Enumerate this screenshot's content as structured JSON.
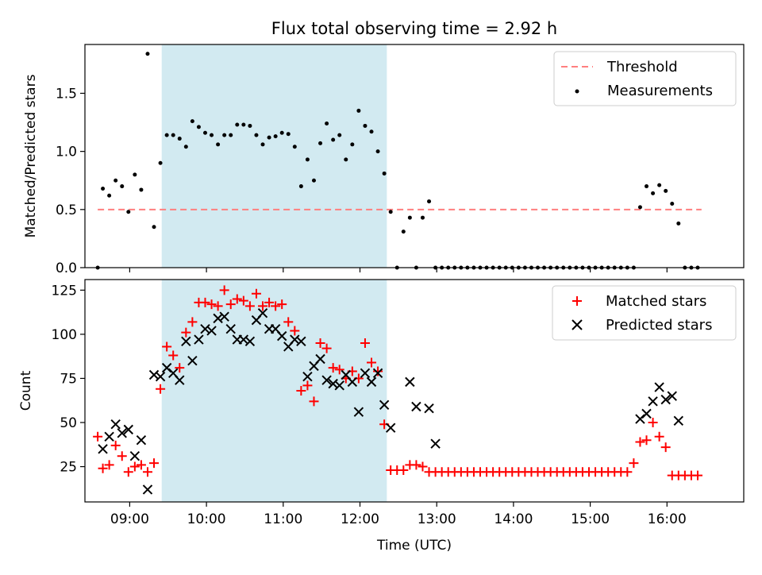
{
  "chart_data": [
    {
      "type": "scatter",
      "title": "Flux total observing time = 2.92 h",
      "ylabel": "Matched/Predicted stars",
      "xlabel": "",
      "xlim": [
        "08:25",
        "17:00"
      ],
      "ylim": [
        0,
        1.92
      ],
      "yticks": [
        0.0,
        0.5,
        1.0,
        1.5
      ],
      "ytick_labels": [
        "0.0",
        "0.5",
        "1.0",
        "1.5"
      ],
      "shaded_span": {
        "start": "09:25",
        "end": "12:21",
        "color": "#add8e6"
      },
      "legend": {
        "position": "top-right",
        "entries": [
          "Threshold",
          "Measurements"
        ]
      },
      "threshold": {
        "name": "Threshold",
        "value": 0.5,
        "x_start": "08:35",
        "x_end": "16:27",
        "color": "#ff7f7f",
        "style": "dashed"
      },
      "series": [
        {
          "name": "Measurements",
          "color": "#000000",
          "marker": "dot",
          "x": [
            "08:35",
            "08:39",
            "08:44",
            "08:49",
            "08:54",
            "08:59",
            "09:04",
            "09:09",
            "09:14",
            "09:19",
            "09:24",
            "09:29",
            "09:34",
            "09:39",
            "09:44",
            "09:49",
            "09:54",
            "09:59",
            "10:04",
            "10:09",
            "10:14",
            "10:19",
            "10:24",
            "10:29",
            "10:34",
            "10:39",
            "10:44",
            "10:49",
            "10:54",
            "10:59",
            "11:04",
            "11:09",
            "11:14",
            "11:19",
            "11:24",
            "11:29",
            "11:34",
            "11:39",
            "11:44",
            "11:49",
            "11:54",
            "11:59",
            "12:04",
            "12:09",
            "12:14",
            "12:19",
            "12:24",
            "12:29",
            "12:34",
            "12:39",
            "12:44",
            "12:49",
            "12:54",
            "12:59",
            "13:04",
            "13:09",
            "13:14",
            "13:19",
            "13:24",
            "13:29",
            "13:34",
            "13:39",
            "13:44",
            "13:49",
            "13:54",
            "13:59",
            "14:04",
            "14:09",
            "14:14",
            "14:19",
            "14:24",
            "14:29",
            "14:34",
            "14:39",
            "14:44",
            "14:49",
            "14:54",
            "14:59",
            "15:04",
            "15:09",
            "15:14",
            "15:19",
            "15:24",
            "15:29",
            "15:34",
            "15:39",
            "15:44",
            "15:49",
            "15:54",
            "15:59",
            "16:04",
            "16:09",
            "16:14",
            "16:19",
            "16:24"
          ],
          "values": [
            0.0,
            0.68,
            0.62,
            0.75,
            0.7,
            0.48,
            0.8,
            0.67,
            1.84,
            0.35,
            0.9,
            1.14,
            1.14,
            1.11,
            1.04,
            1.26,
            1.21,
            1.16,
            1.14,
            1.06,
            1.14,
            1.14,
            1.23,
            1.23,
            1.22,
            1.14,
            1.06,
            1.12,
            1.13,
            1.16,
            1.15,
            1.04,
            0.7,
            0.93,
            0.75,
            1.07,
            1.24,
            1.1,
            1.14,
            0.93,
            1.06,
            1.35,
            1.22,
            1.17,
            1.0,
            0.81,
            0.48,
            0.0,
            0.31,
            0.43,
            0.0,
            0.43,
            0.57,
            0.0,
            0.0,
            0.0,
            0.0,
            0.0,
            0.0,
            0.0,
            0.0,
            0.0,
            0.0,
            0.0,
            0.0,
            0.0,
            0.0,
            0.0,
            0.0,
            0.0,
            0.0,
            0.0,
            0.0,
            0.0,
            0.0,
            0.0,
            0.0,
            0.0,
            0.0,
            0.0,
            0.0,
            0.0,
            0.0,
            0.0,
            0.0,
            0.52,
            0.7,
            0.64,
            0.71,
            0.66,
            0.55,
            0.38,
            0.0,
            0.0,
            0.0
          ]
        }
      ]
    },
    {
      "type": "scatter",
      "title": "",
      "xlabel": "Time (UTC)",
      "ylabel": "Count",
      "xlim": [
        "08:25",
        "17:00"
      ],
      "ylim": [
        5,
        131
      ],
      "yticks": [
        25,
        50,
        75,
        100,
        125
      ],
      "xticks": [
        "09:00",
        "10:00",
        "11:00",
        "12:00",
        "13:00",
        "14:00",
        "15:00",
        "16:00"
      ],
      "shaded_span": {
        "start": "09:25",
        "end": "12:21",
        "color": "#add8e6"
      },
      "legend": {
        "position": "top-right",
        "entries": [
          "Matched stars",
          "Predicted stars"
        ]
      },
      "series": [
        {
          "name": "Matched stars",
          "color": "#ff0000",
          "marker": "+",
          "x": [
            "08:35",
            "08:39",
            "08:44",
            "08:49",
            "08:54",
            "08:59",
            "09:04",
            "09:09",
            "09:14",
            "09:19",
            "09:24",
            "09:29",
            "09:34",
            "09:39",
            "09:44",
            "09:49",
            "09:54",
            "09:59",
            "10:04",
            "10:09",
            "10:14",
            "10:19",
            "10:24",
            "10:29",
            "10:34",
            "10:39",
            "10:44",
            "10:49",
            "10:54",
            "10:59",
            "11:04",
            "11:09",
            "11:14",
            "11:19",
            "11:24",
            "11:29",
            "11:34",
            "11:39",
            "11:44",
            "11:49",
            "11:54",
            "11:59",
            "12:04",
            "12:09",
            "12:14",
            "12:19",
            "12:24",
            "12:29",
            "12:34",
            "12:39",
            "12:44",
            "12:49",
            "12:54",
            "12:59",
            "13:04",
            "13:09",
            "13:14",
            "13:19",
            "13:24",
            "13:29",
            "13:34",
            "13:39",
            "13:44",
            "13:49",
            "13:54",
            "13:59",
            "14:04",
            "14:09",
            "14:14",
            "14:19",
            "14:24",
            "14:29",
            "14:34",
            "14:39",
            "14:44",
            "14:49",
            "14:54",
            "14:59",
            "15:04",
            "15:09",
            "15:14",
            "15:19",
            "15:24",
            "15:29",
            "15:34",
            "15:39",
            "15:44",
            "15:49",
            "15:54",
            "15:59",
            "16:04",
            "16:09",
            "16:14",
            "16:19",
            "16:24"
          ],
          "values": [
            42,
            24,
            26,
            37,
            31,
            22,
            25,
            26,
            22,
            27,
            69,
            93,
            88,
            81,
            101,
            107,
            118,
            118,
            117,
            116,
            125,
            117,
            120,
            119,
            116,
            123,
            116,
            118,
            116,
            117,
            107,
            102,
            68,
            71,
            62,
            95,
            92,
            81,
            80,
            75,
            79,
            75,
            95,
            84,
            79,
            49,
            23,
            23,
            23,
            26,
            26,
            25,
            22,
            22,
            22,
            22,
            22,
            22,
            22,
            22,
            22,
            22,
            22,
            22,
            22,
            22,
            22,
            22,
            22,
            22,
            22,
            22,
            22,
            22,
            22,
            22,
            22,
            22,
            22,
            22,
            22,
            22,
            22,
            22,
            27,
            39,
            40,
            50,
            42,
            36,
            20,
            20,
            20,
            20,
            20
          ]
        },
        {
          "name": "Predicted stars",
          "color": "#000000",
          "marker": "x",
          "x": [
            "08:39",
            "08:44",
            "08:49",
            "08:54",
            "08:59",
            "09:04",
            "09:09",
            "09:14",
            "09:19",
            "09:24",
            "09:29",
            "09:34",
            "09:39",
            "09:44",
            "09:49",
            "09:54",
            "09:59",
            "10:04",
            "10:09",
            "10:14",
            "10:19",
            "10:24",
            "10:29",
            "10:34",
            "10:39",
            "10:44",
            "10:49",
            "10:54",
            "10:59",
            "11:04",
            "11:09",
            "11:14",
            "11:19",
            "11:24",
            "11:29",
            "11:34",
            "11:39",
            "11:44",
            "11:49",
            "11:54",
            "11:59",
            "12:04",
            "12:09",
            "12:14",
            "12:19",
            "12:24",
            "12:39",
            "12:44",
            "12:54",
            "12:59",
            "15:39",
            "15:44",
            "15:49",
            "15:54",
            "15:59",
            "16:04",
            "16:09"
          ],
          "values": [
            35,
            42,
            49,
            44,
            46,
            31,
            40,
            12,
            77,
            76,
            81,
            78,
            74,
            96,
            85,
            97,
            103,
            102,
            109,
            110,
            103,
            97,
            97,
            96,
            108,
            112,
            103,
            103,
            99,
            93,
            97,
            96,
            76,
            82,
            86,
            74,
            72,
            71,
            77,
            73,
            56,
            78,
            73,
            78,
            60,
            47,
            73,
            59,
            58,
            38,
            52,
            55,
            62,
            70,
            63,
            65,
            51
          ]
        }
      ]
    }
  ]
}
